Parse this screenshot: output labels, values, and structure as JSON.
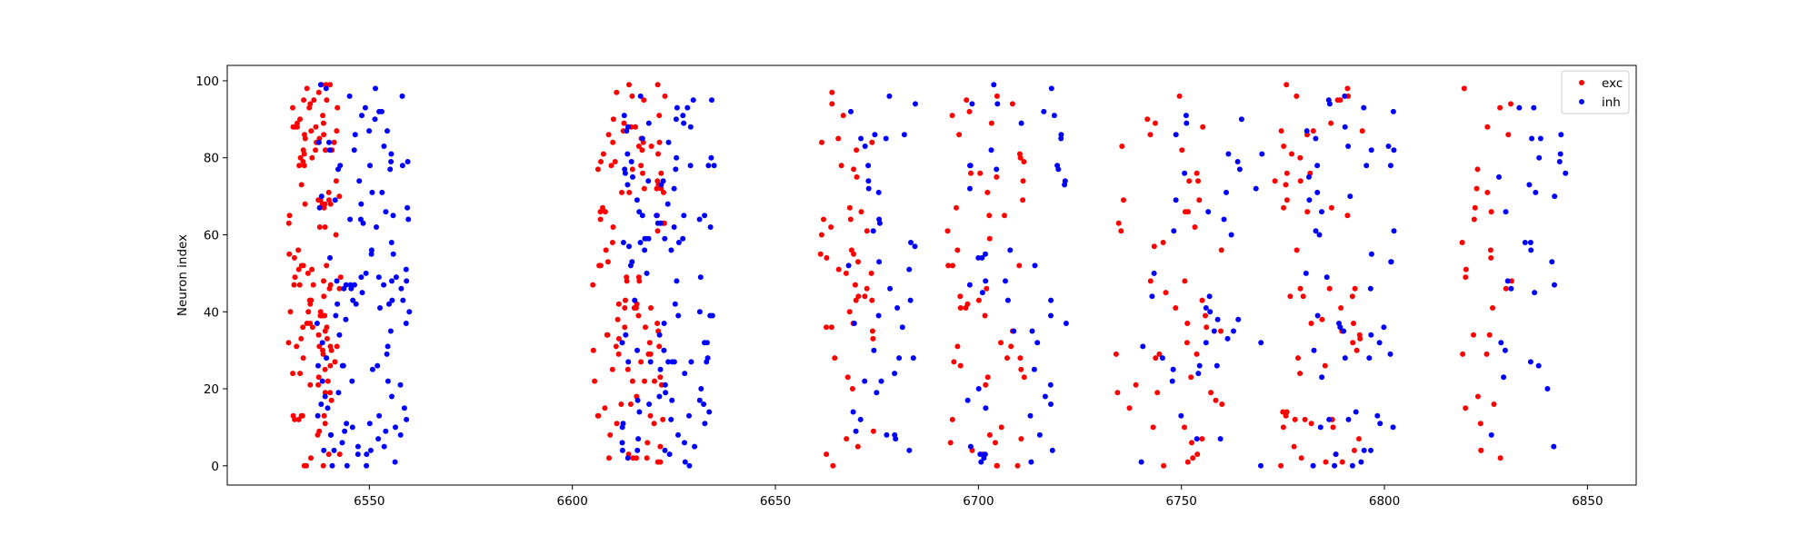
{
  "chart_data": {
    "type": "scatter",
    "title": "",
    "xlabel": "",
    "ylabel": "Neuron index",
    "xlim": [
      6515,
      6862
    ],
    "ylim": [
      -5,
      104
    ],
    "xticks": [
      6550,
      6600,
      6650,
      6700,
      6750,
      6800,
      6850
    ],
    "yticks": [
      0,
      20,
      40,
      60,
      80,
      100
    ],
    "grid": false,
    "legend": {
      "placement": "top-right",
      "entries": [
        "exc",
        "inh"
      ]
    },
    "colors": {
      "exc": "#ff0000",
      "inh": "#0000ff"
    },
    "bursts": [
      {
        "exc_x": [
          6530,
          6543
        ],
        "exc_n": 130,
        "inh_x": [
          6537,
          6560
        ],
        "inh_n": 120
      },
      {
        "exc_x": [
          6605,
          6623
        ],
        "exc_n": 110,
        "inh_x": [
          6612,
          6635
        ],
        "inh_n": 110
      },
      {
        "exc_x": [
          6661,
          6675
        ],
        "exc_n": 45,
        "inh_x": [
          6668,
          6685
        ],
        "inh_n": 40
      },
      {
        "exc_x": [
          6692,
          6712
        ],
        "exc_n": 55,
        "inh_x": [
          6697,
          6722
        ],
        "inh_n": 50
      },
      {
        "exc_x": [
          6732,
          6760
        ],
        "exc_n": 50,
        "inh_x": [
          6740,
          6770
        ],
        "inh_n": 40
      },
      {
        "exc_x": [
          6772,
          6795
        ],
        "exc_n": 60,
        "inh_x": [
          6780,
          6803
        ],
        "inh_n": 55
      },
      {
        "exc_x": [
          6819,
          6832
        ],
        "exc_n": 30,
        "inh_x": [
          6826,
          6845
        ],
        "inh_n": 30
      }
    ],
    "series": [
      {
        "name": "exc",
        "points": []
      },
      {
        "name": "inh",
        "points": []
      }
    ]
  }
}
